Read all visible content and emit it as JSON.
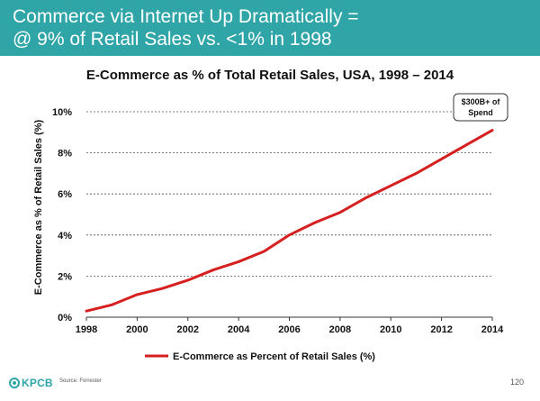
{
  "header": {
    "line1": "Commerce via Internet Up Dramatically =",
    "line2": "@ 9% of Retail Sales vs. <1% in 1998"
  },
  "chart_data": {
    "type": "line",
    "title": "E-Commerce as % of Total Retail Sales, USA, 1998 – 2014",
    "xlabel": "",
    "ylabel": "E-Commerce as % of Retail Sales (%)",
    "x": [
      1998,
      1999,
      2000,
      2001,
      2002,
      2003,
      2004,
      2005,
      2006,
      2007,
      2008,
      2009,
      2010,
      2011,
      2012,
      2013,
      2014
    ],
    "xticks": [
      "1998",
      "2000",
      "2002",
      "2004",
      "2006",
      "2008",
      "2010",
      "2012",
      "2014"
    ],
    "xlim": [
      1998,
      2014
    ],
    "yticks": [
      "0%",
      "2%",
      "4%",
      "6%",
      "8%",
      "10%"
    ],
    "ylim": [
      0,
      10
    ],
    "series": [
      {
        "name": "E-Commerce as Percent of Retail Sales (%)",
        "color": "#d61f1f",
        "values": [
          0.3,
          0.6,
          1.1,
          1.4,
          1.8,
          2.3,
          2.7,
          3.2,
          4.0,
          4.6,
          5.1,
          5.8,
          6.4,
          7.0,
          7.7,
          8.4,
          9.1
        ]
      }
    ],
    "annotation": {
      "line1": "$300B+ of",
      "line2": "Spend"
    },
    "grid": "horizontal-dashed",
    "legend_position": "bottom"
  },
  "footer": {
    "logo": "KPCB",
    "source": "Source: Forrester",
    "page": "120"
  },
  "colors": {
    "header_bg": "#2fa5a8",
    "line": "#d61f1f"
  }
}
